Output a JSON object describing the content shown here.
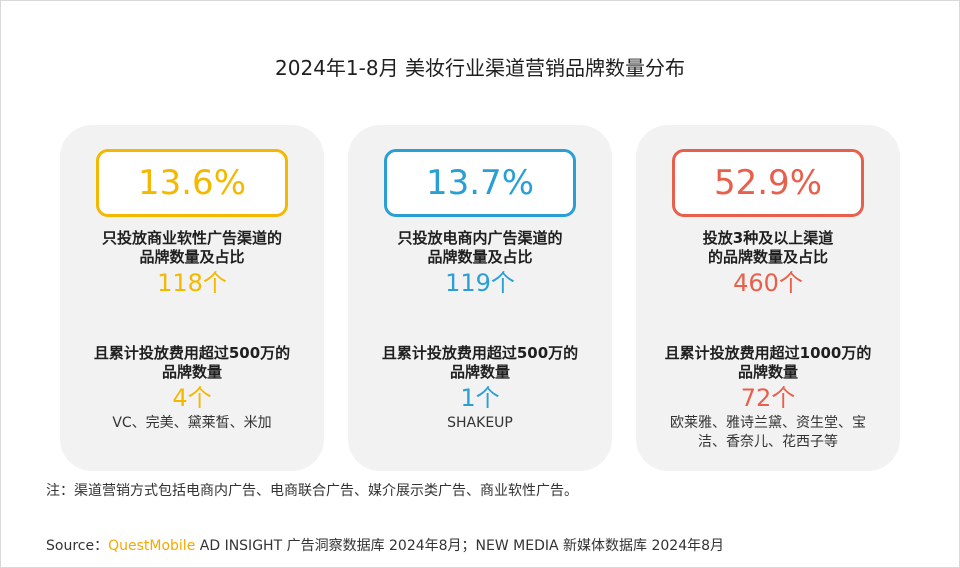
{
  "colors": {
    "yellow": "#f5b800",
    "blue": "#2a9fd6",
    "red": "#e8604c"
  },
  "chart_data": {
    "type": "table",
    "title": "2024年1-8月 美妆行业渠道营销品牌数量分布",
    "cards": [
      {
        "percent": "13.6%",
        "desc_line1": "只投放商业软性广告渠道的",
        "desc_line2": "品牌数量及占比",
        "count": "118个",
        "sub_line1": "且累计投放费用超过500万的",
        "sub_line2": "品牌数量",
        "sub_count": "4个",
        "brands_line1": "VC、完美、黛莱皙、米加",
        "brands_line2": ""
      },
      {
        "percent": "13.7%",
        "desc_line1": "只投放电商内广告渠道的",
        "desc_line2": "品牌数量及占比",
        "count": "119个",
        "sub_line1": "且累计投放费用超过500万的",
        "sub_line2": "品牌数量",
        "sub_count": "1个",
        "brands_line1": "SHAKEUP",
        "brands_line2": ""
      },
      {
        "percent": "52.9%",
        "desc_line1": "投放3种及以上渠道",
        "desc_line2": "的品牌数量及占比",
        "count": "460个",
        "sub_line1": "且累计投放费用超过1000万的",
        "sub_line2": "品牌数量",
        "sub_count": "72个",
        "brands_line1": "欧莱雅、雅诗兰黛、资生堂、宝",
        "brands_line2": "洁、香奈儿、花西子等"
      }
    ]
  },
  "footer": {
    "note": "注：渠道营销方式包括电商内广告、电商联合广告、媒介展示类广告、商业软性广告。",
    "source_label": "Source：",
    "source_brand": "QuestMobile",
    "source_rest": " AD INSIGHT 广告洞察数据库 2024年8月；NEW MEDIA 新媒体数据库 2024年8月"
  }
}
